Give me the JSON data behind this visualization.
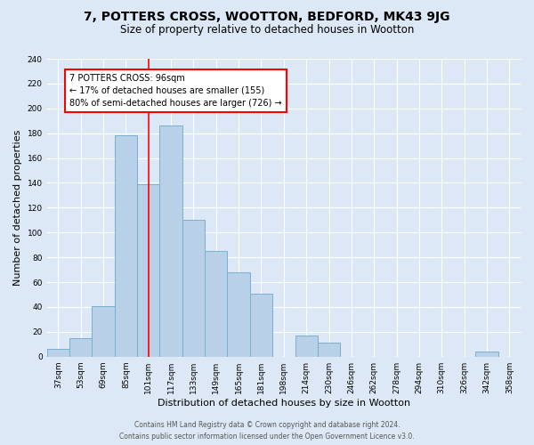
{
  "title": "7, POTTERS CROSS, WOOTTON, BEDFORD, MK43 9JG",
  "subtitle": "Size of property relative to detached houses in Wootton",
  "xlabel": "Distribution of detached houses by size in Wootton",
  "ylabel": "Number of detached properties",
  "bin_labels": [
    "37sqm",
    "53sqm",
    "69sqm",
    "85sqm",
    "101sqm",
    "117sqm",
    "133sqm",
    "149sqm",
    "165sqm",
    "181sqm",
    "198sqm",
    "214sqm",
    "230sqm",
    "246sqm",
    "262sqm",
    "278sqm",
    "294sqm",
    "310sqm",
    "326sqm",
    "342sqm",
    "358sqm"
  ],
  "bar_values": [
    6,
    15,
    41,
    178,
    139,
    186,
    110,
    85,
    68,
    51,
    0,
    17,
    11,
    0,
    0,
    0,
    0,
    0,
    0,
    4,
    0
  ],
  "bar_color": "#b8d0e8",
  "bar_edge_color": "#7aaed0",
  "vline_x_index": 4,
  "vline_color": "red",
  "annotation_title": "7 POTTERS CROSS: 96sqm",
  "annotation_line1": "← 17% of detached houses are smaller (155)",
  "annotation_line2": "80% of semi-detached houses are larger (726) →",
  "annotation_box_color": "white",
  "annotation_box_edge_color": "red",
  "ylim": [
    0,
    240
  ],
  "yticks": [
    0,
    20,
    40,
    60,
    80,
    100,
    120,
    140,
    160,
    180,
    200,
    220,
    240
  ],
  "footer_line1": "Contains HM Land Registry data © Crown copyright and database right 2024.",
  "footer_line2": "Contains public sector information licensed under the Open Government Licence v3.0.",
  "bg_color": "#dce8f5",
  "plot_bg_color": "#dce8f5",
  "grid_color": "white",
  "title_fontsize": 10,
  "subtitle_fontsize": 8.5,
  "axis_label_fontsize": 8,
  "tick_fontsize": 6.5,
  "footer_fontsize": 5.5,
  "annotation_fontsize": 7
}
